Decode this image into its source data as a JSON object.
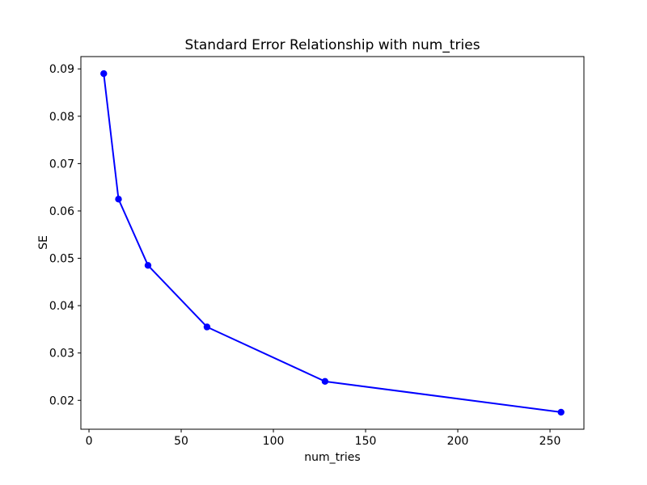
{
  "figure": {
    "background": "#ffffff"
  },
  "chart_data": {
    "type": "line",
    "title": "Standard Error Relationship with num_tries",
    "xlabel": "num_tries",
    "ylabel": "SE",
    "series": [
      {
        "name": "SE",
        "x": [
          8,
          16,
          32,
          64,
          128,
          256
        ],
        "y": [
          0.089,
          0.0625,
          0.0485,
          0.0355,
          0.024,
          0.0175
        ],
        "color": "#0000ff",
        "marker": "circle",
        "line_width": 2,
        "marker_radius": 4.2
      }
    ],
    "xlim": [
      -4.4,
      268.4
    ],
    "ylim": [
      0.0139,
      0.0926
    ],
    "xticks": [
      0,
      50,
      100,
      150,
      200,
      250
    ],
    "yticks": [
      0.02,
      0.03,
      0.04,
      0.05,
      0.06,
      0.07,
      0.08,
      0.09
    ],
    "ytick_decimals": 2,
    "grid": false,
    "legend_position": "none",
    "spine_color": "#000000"
  }
}
